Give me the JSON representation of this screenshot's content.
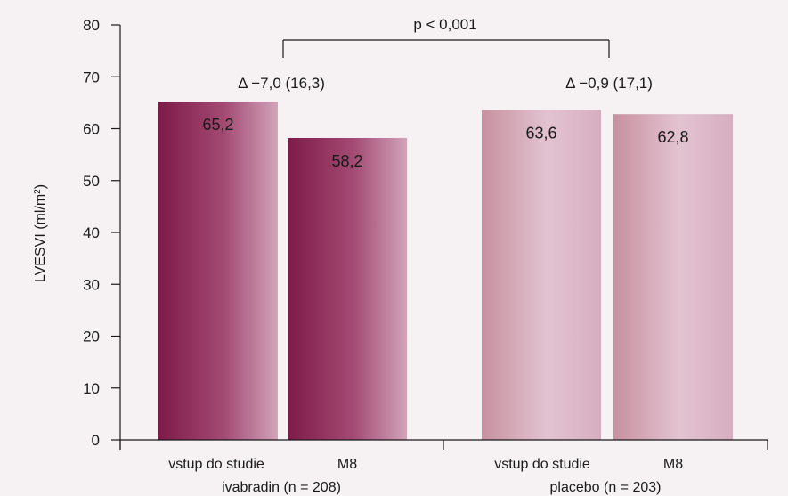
{
  "chart_data": {
    "type": "bar",
    "ylabel_main": "LVESVI (ml/m",
    "ylabel_sup": "2",
    "ylabel_end": ")",
    "ylim": [
      0,
      80
    ],
    "yticks": [
      "0",
      "10",
      "20",
      "30",
      "40",
      "50",
      "60",
      "70",
      "80"
    ],
    "grid": false,
    "groups": [
      {
        "label": "ivabradin (n = 208)",
        "categories": [
          "vstup do studie",
          "M8"
        ],
        "values": [
          65.2,
          58.2
        ],
        "value_labels": [
          "65,2",
          "58,2"
        ],
        "colors": [
          "#8e2a57",
          "#9c3d67"
        ],
        "delta_label": "Δ −7,0 (16,3)"
      },
      {
        "label": "placebo (n = 203)",
        "categories": [
          "vstup do studie",
          "M8"
        ],
        "values": [
          63.6,
          62.8
        ],
        "value_labels": [
          "63,6",
          "62,8"
        ],
        "colors": [
          "#cfa0b6",
          "#cc9cb2"
        ],
        "delta_label": "Δ −0,9 (17,1)"
      }
    ],
    "comparison_label": "p < 0,001"
  }
}
